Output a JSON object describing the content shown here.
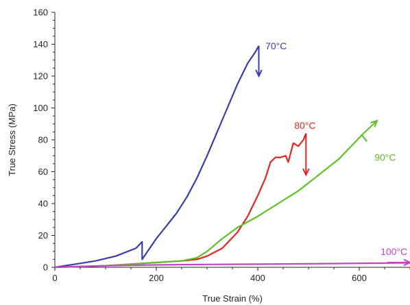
{
  "chart_data": {
    "type": "line",
    "title": "",
    "xlabel": "True Strain (%)",
    "ylabel": "True Stress (MPa)",
    "xlim": [
      0,
      700
    ],
    "ylim": [
      0,
      160
    ],
    "xticks": [
      0,
      200,
      400,
      600
    ],
    "yticks": [
      0,
      20,
      40,
      60,
      80,
      100,
      120,
      140,
      160
    ],
    "grid": false,
    "legend": "none",
    "series": [
      {
        "name": "70°C",
        "color": "#3b3bb0",
        "x": [
          0,
          40,
          80,
          120,
          160,
          172,
          172,
          200,
          220,
          240,
          260,
          280,
          300,
          320,
          340,
          360,
          380,
          395,
          402
        ],
        "y": [
          0,
          2,
          4,
          7,
          12,
          16,
          5,
          18,
          26,
          34,
          44,
          56,
          70,
          85,
          100,
          115,
          128,
          135,
          139
        ]
      },
      {
        "name": "80°C",
        "color": "#e8231f",
        "x": [
          0,
          100,
          150,
          200,
          250,
          280,
          300,
          330,
          360,
          380,
          400,
          415,
          425,
          435,
          445,
          455,
          460,
          465,
          470,
          480,
          490,
          495
        ],
        "y": [
          0,
          1,
          2,
          3,
          4,
          5,
          7,
          12,
          22,
          32,
          45,
          56,
          66,
          69,
          69,
          70,
          66,
          72,
          78,
          76,
          80,
          84
        ]
      },
      {
        "name": "90°C",
        "color": "#5cc124",
        "x": [
          0,
          100,
          150,
          200,
          250,
          280,
          300,
          330,
          360,
          400,
          440,
          480,
          520,
          560,
          590,
          605,
          615
        ],
        "y": [
          0,
          1,
          2,
          3,
          4,
          6,
          10,
          18,
          25,
          32,
          40,
          48,
          58,
          68,
          78,
          83,
          79
        ]
      },
      {
        "name": "100°C",
        "color": "#c542c5",
        "x": [
          0,
          100,
          200,
          300,
          400,
          500,
          600,
          700
        ],
        "y": [
          0,
          1,
          1.5,
          1.8,
          2,
          2.2,
          2.5,
          2.8
        ]
      }
    ],
    "annotations": [
      {
        "text": "70°C",
        "color": "#3b3bb0",
        "x": 415,
        "y": 139
      },
      {
        "text": "80°C",
        "color": "#e8231f",
        "x": 472,
        "y": 89
      },
      {
        "text": "90°C",
        "color": "#5cc124",
        "x": 630,
        "y": 69
      },
      {
        "text": "100°C",
        "color": "#c542c5",
        "x": 642,
        "y": 10
      }
    ]
  }
}
